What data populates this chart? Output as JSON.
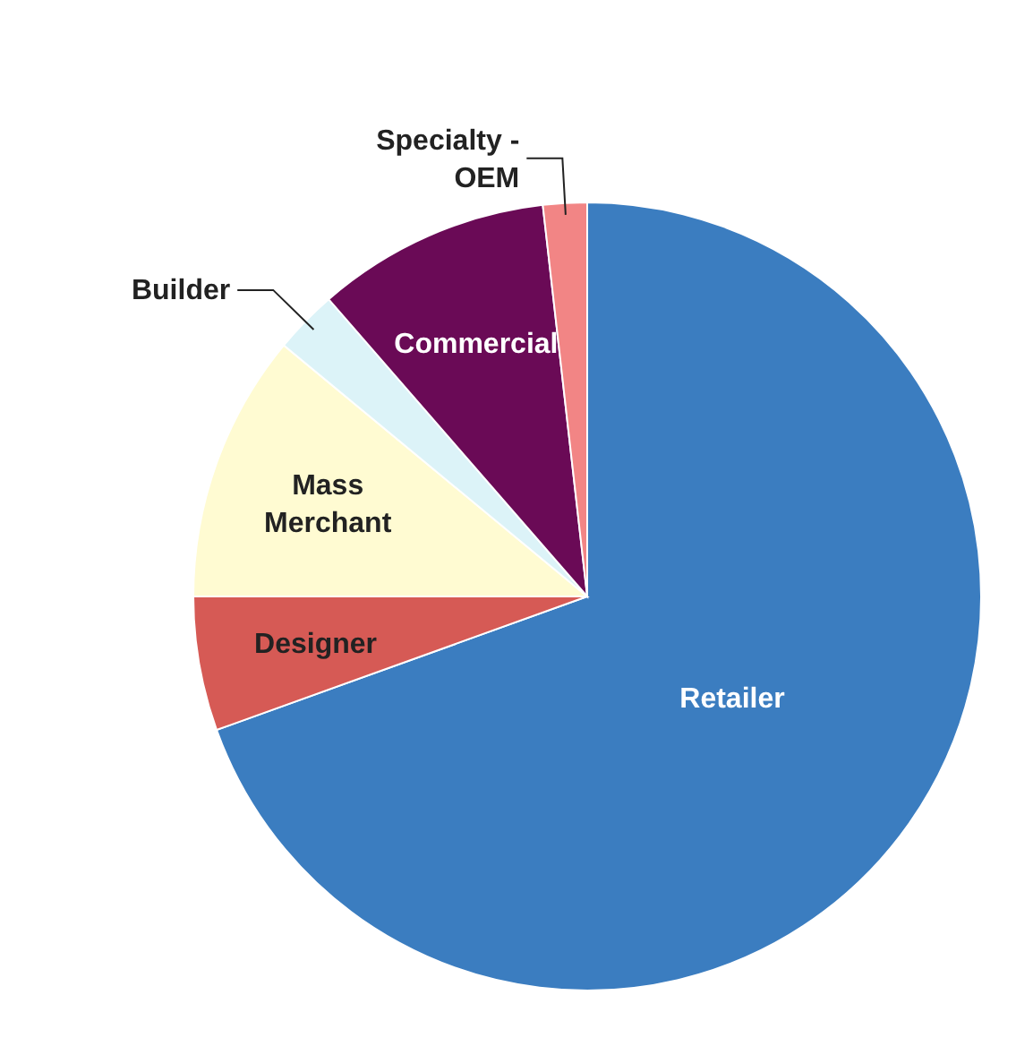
{
  "chart_data": {
    "type": "pie",
    "categories": [
      "Retailer",
      "Designer",
      "Mass Merchant",
      "Builder",
      "Commercial",
      "Specialty - OEM"
    ],
    "values": [
      69.5,
      5.5,
      11,
      2.6,
      9.6,
      1.8
    ],
    "colors": [
      "#3b7dc0",
      "#d65a55",
      "#fffbd2",
      "#dcf3f8",
      "#6a0a56",
      "#f28585"
    ]
  }
}
